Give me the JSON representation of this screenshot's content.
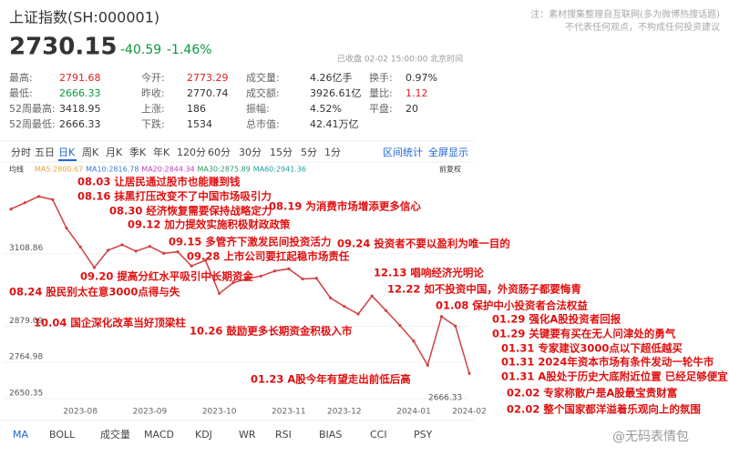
{
  "header": {
    "title": "上证指数(SH:000001)",
    "price": "2730.15",
    "change": "-40.59",
    "change_pct": "-1.46%",
    "status": "已收盘 02-02 15:00:00 北京时间",
    "note": [
      "注：素材搜集整理自互联网(多为微博热搜话题)",
      "不代表任何观点，不构成任何投资建议"
    ]
  },
  "stats": [
    [
      {
        "label": "最高:",
        "value": "2791.68",
        "color": "#e02020"
      },
      {
        "label": "今开:",
        "value": "2773.29",
        "color": "#e02020"
      },
      {
        "label": "成交量:",
        "value": "4.26亿手"
      },
      {
        "label": "换手:",
        "value": "0.97%"
      }
    ],
    [
      {
        "label": "最低:",
        "value": "2666.33",
        "color": "#0a9a3a"
      },
      {
        "label": "昨收:",
        "value": "2770.74"
      },
      {
        "label": "成交额:",
        "value": "3926.61亿"
      },
      {
        "label": "量比:",
        "value": "1.12",
        "color": "#e02020"
      }
    ],
    [
      {
        "label": "52周最高:",
        "value": "3418.95"
      },
      {
        "label": "上涨:",
        "value": "186"
      },
      {
        "label": "振幅:",
        "value": "4.52%"
      },
      {
        "label": "平盘:",
        "value": "20"
      }
    ],
    [
      {
        "label": "52周最低:",
        "value": "2666.33"
      },
      {
        "label": "下跌:",
        "value": "1534"
      },
      {
        "label": "总市值:",
        "value": "42.41万亿"
      }
    ]
  ],
  "tabs": [
    "分时",
    "五日",
    "日K",
    "周K",
    "月K",
    "季K",
    "年K",
    "120分",
    "60分",
    "30分",
    "15分",
    "5分",
    "1分"
  ],
  "tab_selected": 2,
  "tab_links": [
    "区间统计",
    "全屏显示"
  ],
  "ma_row": {
    "label": "均线",
    "items": [
      {
        "text": "MA5:2800.67",
        "color": "#e6a23c"
      },
      {
        "text": "MA10:2816.78",
        "color": "#3a7bd5"
      },
      {
        "text": "MA20:2844.34",
        "color": "#c040c0"
      },
      {
        "text": "MA30:2875.89",
        "color": "#2a9a6a"
      },
      {
        "text": "MA60:2941.36",
        "color": "#20a0a0"
      }
    ],
    "adjust": "前复权"
  },
  "chart_data": {
    "type": "line",
    "color": "#d04040",
    "categories": [
      null,
      null,
      null,
      null,
      null,
      "2023-08",
      null,
      null,
      null,
      null,
      "2023-09",
      null,
      null,
      null,
      null,
      "2023-10",
      null,
      null,
      null,
      null,
      "2023-11",
      null,
      null,
      null,
      "2023-12",
      null,
      null,
      null,
      null,
      "2024-01",
      null,
      null,
      null,
      "2024-02"
    ],
    "values": [
      3250,
      3270,
      3290,
      3280,
      3190,
      3130,
      3065,
      3120,
      3137,
      3117,
      3132,
      3110,
      3115,
      3070,
      3088,
      2983,
      3017,
      3030,
      3038,
      3054,
      3061,
      3029,
      3031,
      2969,
      2942,
      2918,
      2975,
      2929,
      2882,
      2832,
      2756,
      2910,
      2880,
      2730
    ],
    "ylim": [
      2630,
      3350
    ],
    "yticks": [
      2650.35,
      2764.98,
      2879.09,
      3108.86
    ],
    "low_label": "2666.33",
    "annotations": [
      "08.03 让居民通过股市也能赚到钱",
      "08.16 抹黑打压改变不了中国市场吸引力",
      "08.30 经济恢复需要保持战略定力",
      "08.19 为消费市场增添更多信心",
      "09.12 加力提效实施积极财政政策",
      "09.15 多管齐下激发民间投资活力",
      "09.24 投资者不要以盈利为唯一目的",
      "09.28 上市公司要扛起稳市场责任",
      "09.20 提高分红水平吸引中长期资金",
      "12.13 唱响经济光明论",
      "08.24 股民别太在意3000点得与失",
      "12.22 如不投资中国，外资肠子都要悔青",
      "01.08 保护中小投资者合法权益",
      "10.04 国企深化改革当好顶梁柱",
      "01.29 强化A股投资者回报",
      "10.26 鼓励更多长期资金积极入市",
      "01.29 关键要有买在无人问津处的勇气",
      "01.31 专家建议3000点以下超低越买",
      "01.31 2024年资本市场有条件发动一轮牛市",
      "01.23 A股今年有望走出前低后高",
      "01.31 A股处于历史大底附近位置 已经足够便宜",
      "02.02 专家称散户是A股最宝贵财富",
      "02.02 整个国家都洋溢着乐观向上的氛围"
    ]
  },
  "indicator_tabs": [
    "MA",
    "BOLL",
    "成交量",
    "MACD",
    "KDJ",
    "WR",
    "RSI",
    "BIAS",
    "CCI",
    "PSY"
  ],
  "watermark": "@无码表情包"
}
